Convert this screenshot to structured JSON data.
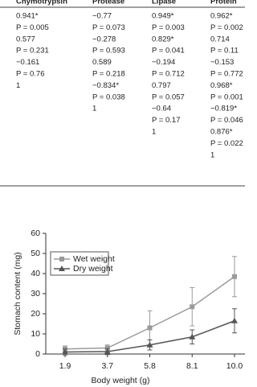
{
  "table": {
    "columns": [
      {
        "header": "Chymotrypsin",
        "cells": [
          "0.941*",
          "P = 0.005",
          "0.577",
          "P = 0.231",
          "−0.161",
          "P = 0.76",
          "1"
        ]
      },
      {
        "header": "Protease",
        "cells": [
          "−0.77",
          "P = 0.073",
          "−0.278",
          "P = 0.593",
          "0.589",
          "P = 0.218",
          "−0.834*",
          "P = 0.038",
          "1"
        ]
      },
      {
        "header": "Lipase",
        "cells": [
          "0.949*",
          "P = 0.003",
          "0.829*",
          "P = 0.041",
          "−0.194",
          "P = 0.712",
          "0.797",
          "P = 0.057",
          "−0.64",
          "P = 0.17",
          "1"
        ]
      },
      {
        "header": "Protein",
        "cells": [
          "0.962*",
          "P = 0.002",
          "0.714",
          "P = 0.11",
          "−0.153",
          "P = 0.772",
          "0.968*",
          "P = 0.001",
          "−0.819*",
          "P = 0.046",
          "0.876*",
          "P = 0.022",
          "1"
        ]
      }
    ]
  },
  "chart_data": {
    "type": "line",
    "x_label": "Body weight (g)",
    "y_label": "Stomach content (mg)",
    "categories": [
      "1.9",
      "3.7",
      "5.8",
      "8.1",
      "10.0"
    ],
    "series": [
      {
        "name": "Wet weight",
        "color": "#9a9a9a",
        "marker": "square",
        "values": [
          2.5,
          3,
          13,
          23.5,
          38.5
        ],
        "errors": [
          1.5,
          1.5,
          8.5,
          9.5,
          10
        ]
      },
      {
        "name": "Dry weight",
        "color": "#555555",
        "marker": "triangle",
        "values": [
          1,
          1.2,
          4.5,
          8.5,
          16.5
        ],
        "errors": [
          1.5,
          1.5,
          2.5,
          3.5,
          6
        ]
      }
    ],
    "ylim": [
      0,
      60
    ],
    "yticks": [
      0,
      10,
      20,
      30,
      40,
      50,
      60
    ],
    "legend": "upper left"
  }
}
